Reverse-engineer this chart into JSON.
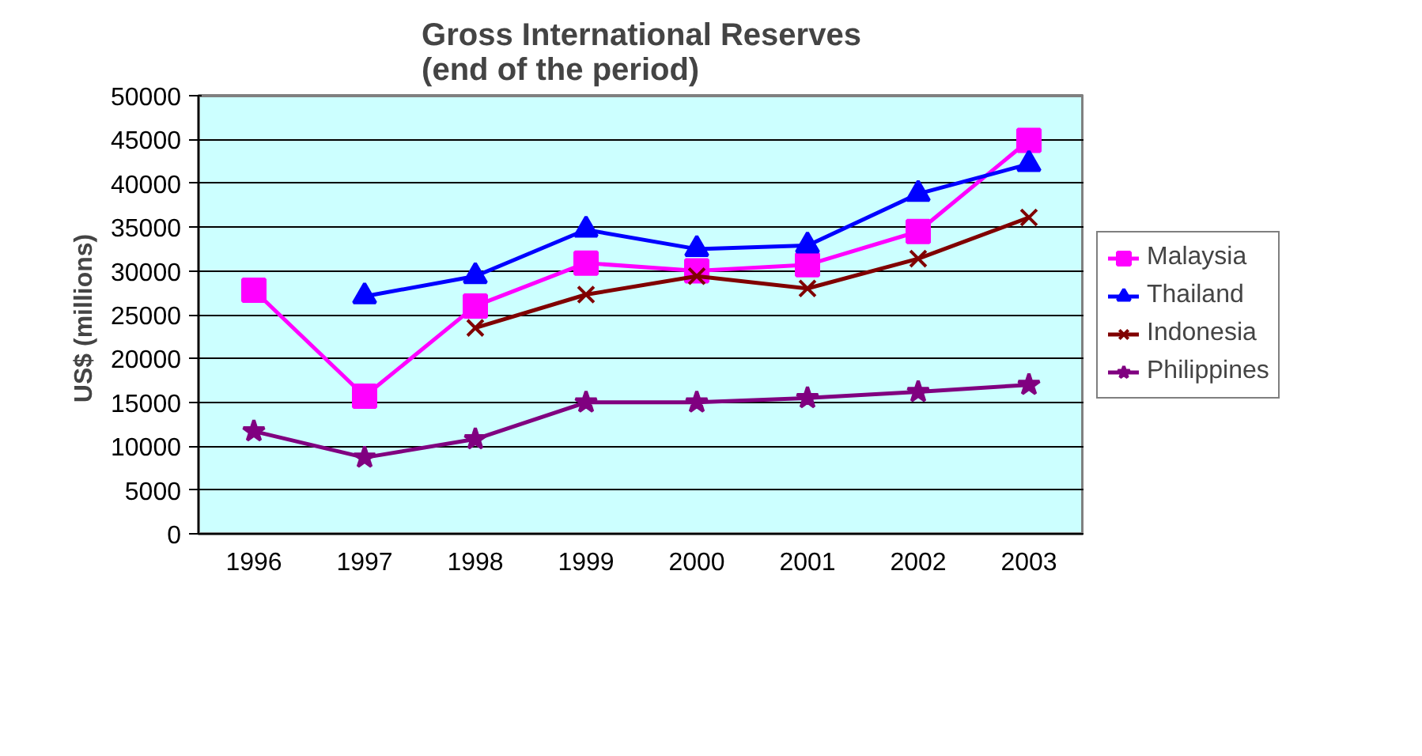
{
  "chart_data": {
    "type": "line",
    "title": "Gross International Reserves\n(end of the period)",
    "ylabel": "US$  (millions)",
    "categories": [
      "1996",
      "1997",
      "1998",
      "1999",
      "2000",
      "2001",
      "2002",
      "2003"
    ],
    "ylim": [
      0,
      50000
    ],
    "yticks": [
      0,
      5000,
      10000,
      15000,
      20000,
      25000,
      30000,
      35000,
      40000,
      45000,
      50000
    ],
    "grid": "y",
    "legend": "right",
    "line_style": "solid",
    "series": [
      {
        "name": "Malaysia",
        "color": "#ff00ff",
        "marker": "square",
        "values": [
          27800,
          15700,
          26000,
          30900,
          30000,
          30700,
          34500,
          44900
        ]
      },
      {
        "name": "Thailand",
        "color": "#0000ff",
        "marker": "triangle",
        "values": [
          null,
          27100,
          29400,
          34700,
          32500,
          32900,
          38800,
          42200
        ]
      },
      {
        "name": "Indonesia",
        "color": "#800000",
        "marker": "cross",
        "values": [
          null,
          null,
          23500,
          27300,
          29400,
          28000,
          31400,
          36100
        ]
      },
      {
        "name": "Philippines",
        "color": "#800080",
        "marker": "star",
        "values": [
          11700,
          8700,
          10800,
          15000,
          15000,
          15500,
          16200,
          17000
        ]
      }
    ]
  }
}
